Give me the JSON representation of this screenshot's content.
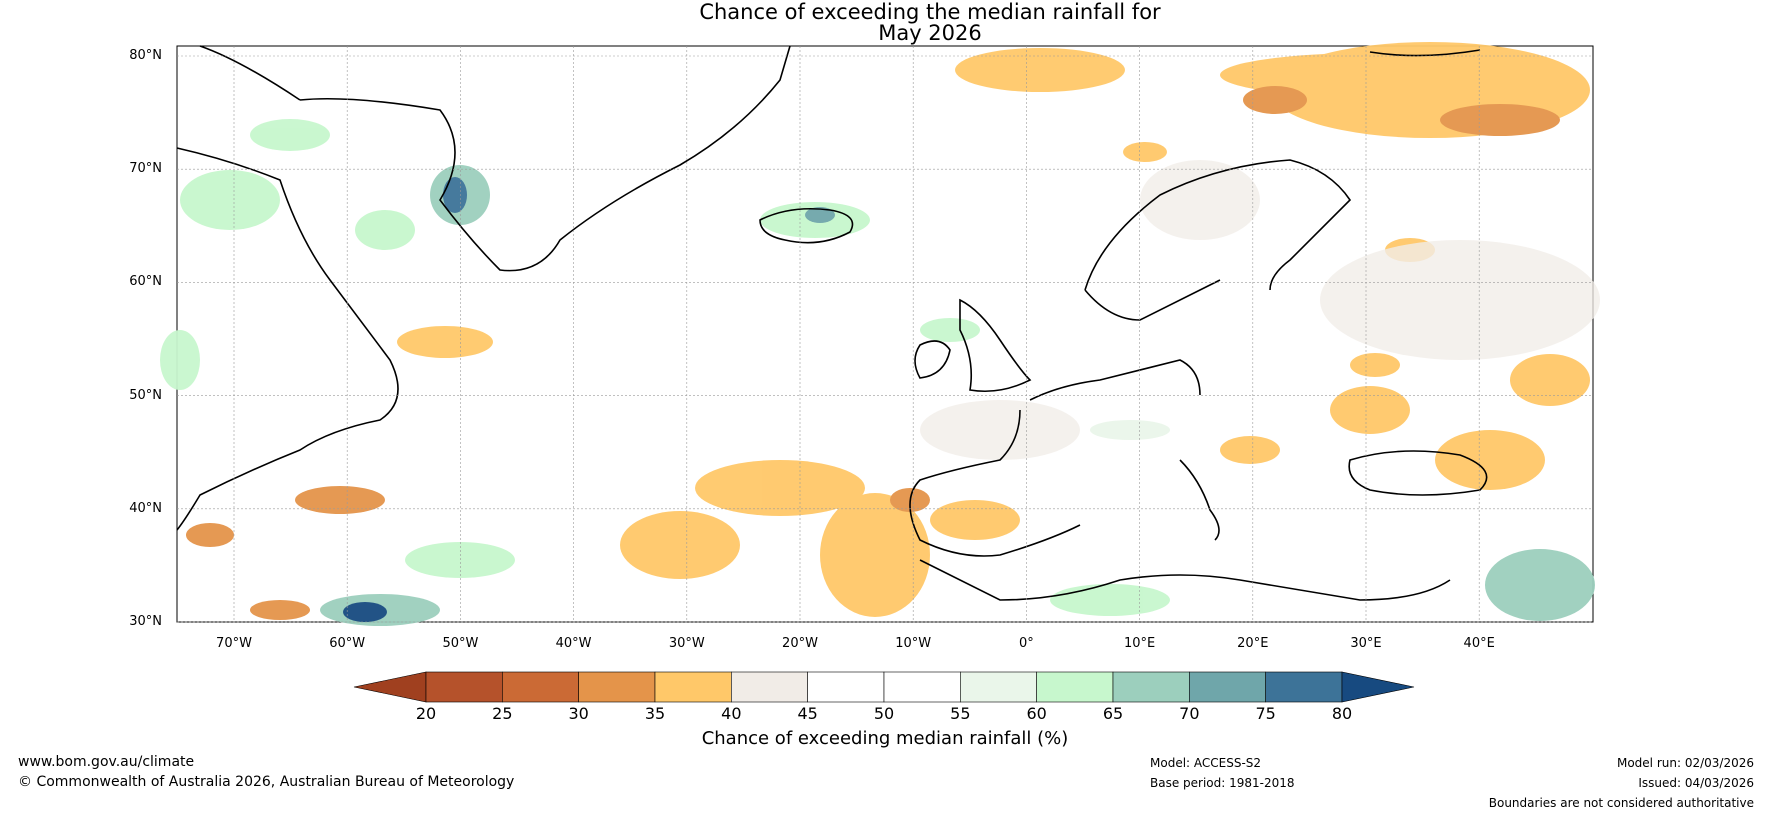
{
  "title_line1": "Chance of exceeding the median rainfall for",
  "title_line2": "May 2026",
  "lat_labels": [
    "80°N",
    "70°N",
    "60°N",
    "50°N",
    "40°N",
    "30°N"
  ],
  "lon_labels": [
    "70°W",
    "60°W",
    "50°W",
    "40°W",
    "30°W",
    "20°W",
    "10°W",
    "0°",
    "10°E",
    "20°E",
    "30°E",
    "40°E"
  ],
  "colorbar": {
    "ticks": [
      "20",
      "25",
      "30",
      "35",
      "40",
      "45",
      "50",
      "55",
      "60",
      "65",
      "70",
      "75",
      "80"
    ],
    "colors": [
      "#a0401f",
      "#b5522b",
      "#cb6a35",
      "#e4944a",
      "#ffc869",
      "#f1ece7",
      "#ffffff",
      "#ffffff",
      "#eaf6ea",
      "#c7f7cd",
      "#9ccfbd",
      "#6fa6aa",
      "#3d7398",
      "#174a80"
    ],
    "label": "Chance of exceeding median rainfall (%)"
  },
  "footer": {
    "website": "www.bom.gov.au/climate",
    "copyright": "© Commonwealth of Australia 2026, Australian Bureau of Meteorology",
    "model": "Model: ACCESS-S2",
    "base_period": "Base period: 1981-2018",
    "model_run": "Model run: 02/03/2026",
    "issued": "Issued: 04/03/2026",
    "disclaimer": "Boundaries are not considered authoritative"
  }
}
